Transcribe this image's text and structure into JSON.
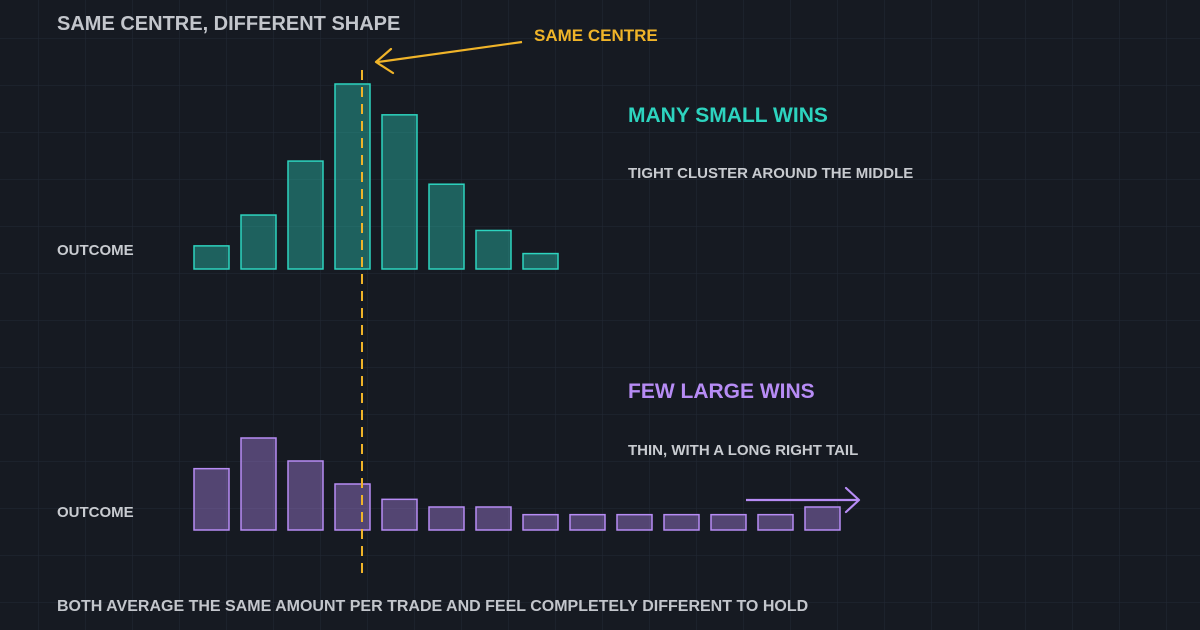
{
  "title": "SAME CENTRE, DIFFERENT SHAPE",
  "footer": "BOTH AVERAGE THE SAME AMOUNT PER TRADE AND FEEL COMPLETELY DIFFERENT TO HOLD",
  "annotation": {
    "label": "SAME CENTRE"
  },
  "colors": {
    "background": "#161a22",
    "grid": "#252b36",
    "title_text": "#c3c6cc",
    "label_text": "#c8cbd0",
    "annotation": "#f0b429",
    "teal": "#2dd4bf",
    "purple": "#b78cf5"
  },
  "icons": {
    "arrow_to_centre": "left-arrow-icon",
    "tail_arrow": "right-arrow-icon"
  },
  "chart_data": [
    {
      "type": "bar",
      "name": "many-small-wins",
      "axis_label": "OUTCOME",
      "heading": "MANY SMALL WINS",
      "subheading": "TIGHT CLUSTER AROUND THE MIDDLE",
      "color": "#2dd4bf",
      "values": [
        3,
        7,
        14,
        24,
        20,
        11,
        5,
        2
      ],
      "ylim": [
        0,
        24
      ]
    },
    {
      "type": "bar",
      "name": "few-large-wins",
      "axis_label": "OUTCOME",
      "heading": "FEW LARGE WINS",
      "subheading": "THIN, WITH A LONG RIGHT TAIL",
      "color": "#b78cf5",
      "values": [
        16,
        24,
        18,
        12,
        8,
        6,
        6,
        4,
        4,
        4,
        4,
        4,
        4,
        6
      ],
      "ylim": [
        0,
        24
      ]
    }
  ]
}
